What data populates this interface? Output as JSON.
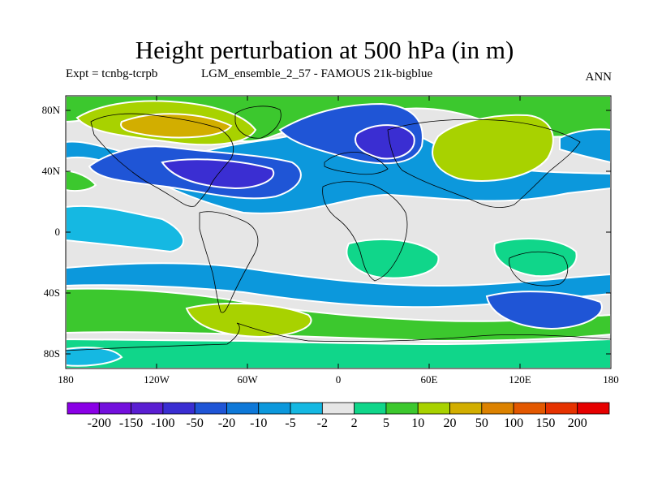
{
  "title": "Height perturbation at 500 hPa (in m)",
  "subtitle_left": "Expt = tcnbg-tcrpb",
  "subtitle_middle": "LGM_ensemble_2_57 - FAMOUS 21k-bigblue",
  "subtitle_right": "ANN",
  "y_axis_labels": [
    "80N",
    "40N",
    "0",
    "40S",
    "80S"
  ],
  "x_axis_labels": [
    "180",
    "120W",
    "60W",
    "0",
    "60E",
    "120E",
    "180"
  ],
  "colorbar": {
    "labels": [
      "-200",
      "-150",
      "-100",
      "-50",
      "-20",
      "-10",
      "-5",
      "-2",
      "2",
      "5",
      "10",
      "20",
      "50",
      "100",
      "150",
      "200"
    ],
    "colors": [
      "#8a00e6",
      "#7310dd",
      "#5a1ed2",
      "#3a2ed2",
      "#1f55d6",
      "#0e78d8",
      "#0c98dc",
      "#15b8e2",
      "#e6e6e6",
      "#10d68a",
      "#3cc82e",
      "#a8d200",
      "#d2ae00",
      "#dc8200",
      "#e35800",
      "#e63200",
      "#e60000"
    ]
  },
  "map_colors": {
    "neutral": "#e6e6e6",
    "white_contour": "#ffffff",
    "coast": "#000000"
  }
}
